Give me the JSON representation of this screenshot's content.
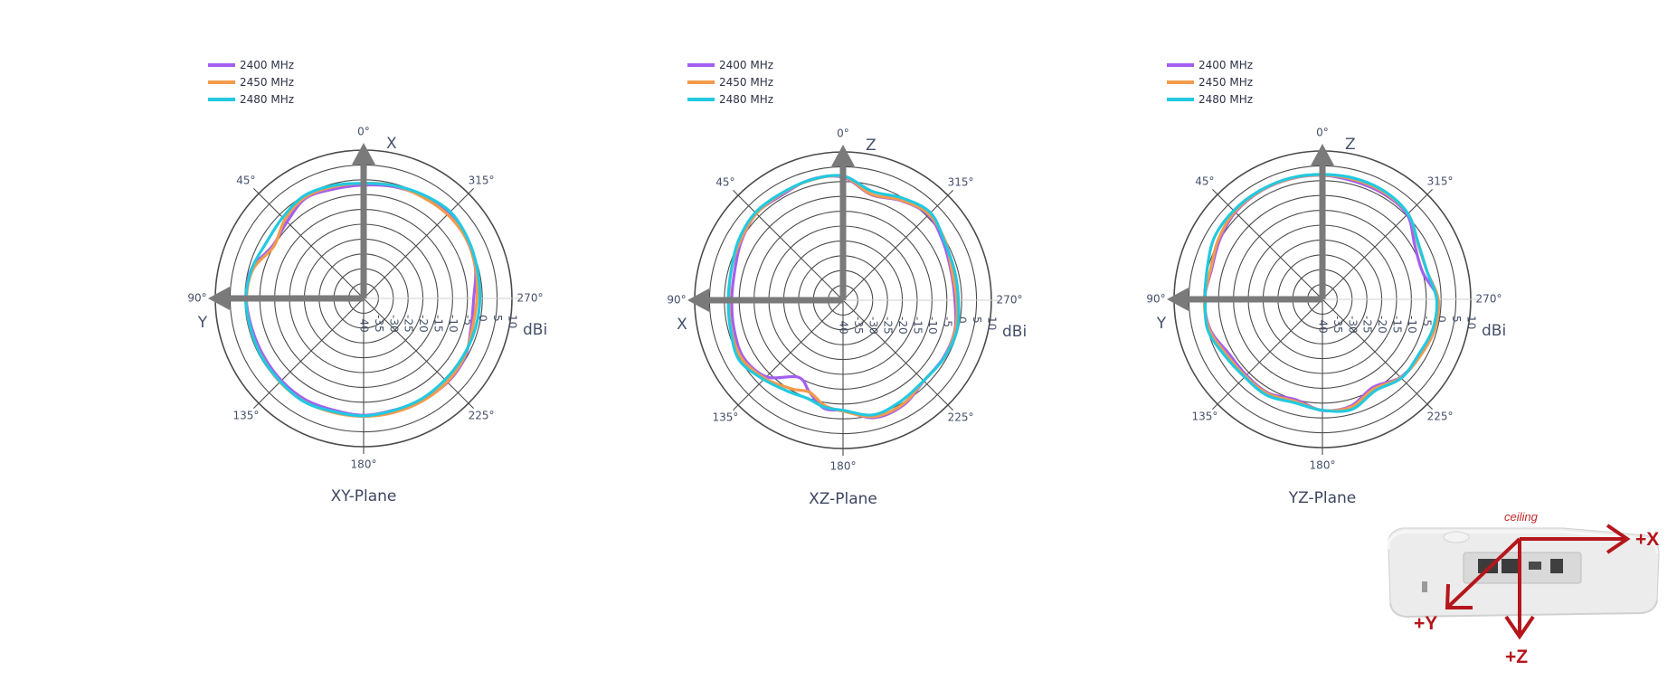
{
  "chart_data": [
    {
      "type": "polar",
      "title": "XY-Plane",
      "unit": "dBi",
      "radial_range": [
        -40,
        10
      ],
      "radial_ticks": [
        "10",
        "5",
        "0",
        "-5",
        "-10",
        "-15",
        "-20",
        "-25",
        "-30",
        "-35",
        "-40"
      ],
      "angle_ticks": [
        "0°",
        "45°",
        "90°",
        "135°",
        "180°",
        "225°",
        "270°",
        "315°"
      ],
      "angle_direction": "counterclockwise, 0° at top",
      "axis_arrows": [
        "X",
        "Y"
      ],
      "legend_position": "top-left",
      "series": [
        {
          "name": "2400 MHz",
          "color": "#a35ff0",
          "angles": [
            0,
            15,
            30,
            45,
            60,
            75,
            90,
            105,
            120,
            135,
            150,
            165,
            180,
            195,
            210,
            225,
            240,
            255,
            270,
            285,
            300,
            315,
            330,
            345
          ],
          "values": [
            -1.8,
            -1.8,
            -1.0,
            -3.5,
            -4.6,
            -1.0,
            -0.5,
            -1.0,
            -1.1,
            -0.8,
            -0.6,
            -1.0,
            -0.6,
            -1.0,
            -0.4,
            0.0,
            -0.5,
            -2.5,
            -2.9,
            -1.0,
            0.0,
            0.4,
            -0.2,
            -1.0
          ]
        },
        {
          "name": "2450 MHz",
          "color": "#f39a4c",
          "angles": [
            0,
            15,
            30,
            45,
            60,
            75,
            90,
            105,
            120,
            135,
            150,
            165,
            180,
            195,
            210,
            225,
            240,
            255,
            270,
            285,
            300,
            315,
            330,
            345
          ],
          "values": [
            -1.2,
            -1.0,
            -0.6,
            -2.5,
            -5.0,
            -1.5,
            -0.5,
            -0.5,
            -0.5,
            -0.1,
            0.1,
            -0.2,
            -0.2,
            -0.2,
            -0.1,
            -0.2,
            -0.8,
            -2.0,
            -1.8,
            -0.9,
            0.0,
            0.0,
            -0.5,
            -0.6
          ]
        },
        {
          "name": "2480 MHz",
          "color": "#22c9e0",
          "angles": [
            0,
            15,
            30,
            45,
            60,
            75,
            90,
            105,
            120,
            135,
            150,
            165,
            180,
            195,
            210,
            225,
            240,
            255,
            270,
            285,
            300,
            315,
            330,
            345
          ],
          "values": [
            -1.2,
            -0.6,
            0.0,
            -1.4,
            -2.2,
            -1.0,
            -0.3,
            -0.6,
            -0.4,
            -0.3,
            0.2,
            -0.5,
            -0.4,
            -0.9,
            -0.9,
            -1.2,
            -1.2,
            -1.0,
            -0.8,
            -0.4,
            0.5,
            1.3,
            0.3,
            -0.6
          ]
        }
      ]
    },
    {
      "type": "polar",
      "title": "XZ-Plane",
      "unit": "dBi",
      "radial_range": [
        -40,
        10
      ],
      "radial_ticks": [
        "10",
        "5",
        "0",
        "-5",
        "-10",
        "-15",
        "-20",
        "-25",
        "-30",
        "-35",
        "-40"
      ],
      "angle_ticks": [
        "0°",
        "45°",
        "90°",
        "135°",
        "180°",
        "225°",
        "270°",
        "315°"
      ],
      "angle_direction": "counterclockwise, 0° at top",
      "axis_arrows": [
        "Z",
        "X"
      ],
      "legend_position": "top-left",
      "series": [
        {
          "name": "2400 MHz",
          "color": "#a35ff0",
          "angles": [
            0,
            15,
            30,
            45,
            60,
            75,
            90,
            105,
            120,
            135,
            150,
            160,
            170,
            180,
            195,
            210,
            225,
            240,
            255,
            270,
            285,
            300,
            315,
            330,
            345
          ],
          "values": [
            1.5,
            2.1,
            1.0,
            1.3,
            -0.4,
            -2.2,
            -2.5,
            -2.0,
            -1.3,
            -3.5,
            -10.0,
            -7.0,
            -3.0,
            -2.8,
            1.0,
            0.8,
            -1.5,
            -1.0,
            -1.0,
            -2.3,
            -2.3,
            -1.0,
            0.7,
            -1.2,
            -3.2
          ]
        },
        {
          "name": "2450 MHz",
          "color": "#f39a4c",
          "angles": [
            0,
            15,
            30,
            45,
            60,
            75,
            90,
            105,
            120,
            135,
            150,
            160,
            170,
            180,
            195,
            210,
            225,
            240,
            255,
            270,
            285,
            300,
            315,
            330,
            345
          ],
          "values": [
            1.7,
            1.9,
            1.4,
            1.3,
            0.0,
            -1.0,
            -1.6,
            -1.0,
            -0.6,
            -2.7,
            -5.5,
            -7.0,
            -4.0,
            -2.6,
            0.6,
            0.4,
            -1.6,
            -0.8,
            -0.8,
            -1.7,
            -2.0,
            -0.2,
            1.0,
            -1.0,
            -3.0
          ]
        },
        {
          "name": "2480 MHz",
          "color": "#22c9e0",
          "angles": [
            0,
            15,
            30,
            45,
            60,
            75,
            90,
            105,
            120,
            135,
            150,
            160,
            170,
            180,
            195,
            210,
            225,
            240,
            255,
            270,
            285,
            300,
            315,
            330,
            345
          ],
          "values": [
            1.9,
            2.0,
            1.6,
            1.8,
            0.6,
            -1.0,
            -1.3,
            -0.8,
            0.4,
            -2.2,
            -4.2,
            -4.8,
            -3.4,
            -2.9,
            0.0,
            -0.8,
            -1.6,
            -0.8,
            -0.3,
            -1.1,
            -1.1,
            -0.5,
            1.7,
            -0.2,
            -2.0
          ]
        }
      ]
    },
    {
      "type": "polar",
      "title": "YZ-Plane",
      "unit": "dBi",
      "radial_range": [
        -40,
        10
      ],
      "radial_ticks": [
        "10",
        "5",
        "0",
        "-5",
        "-10",
        "-15",
        "-20",
        "-25",
        "-30",
        "-35",
        "-40"
      ],
      "angle_ticks": [
        "0°",
        "45°",
        "90°",
        "135°",
        "180°",
        "225°",
        "270°",
        "315°"
      ],
      "angle_direction": "counterclockwise, 0° at top",
      "axis_arrows": [
        "Z",
        "Y"
      ],
      "legend_position": "top-left",
      "series": [
        {
          "name": "2400 MHz",
          "color": "#a35ff0",
          "angles": [
            0,
            15,
            30,
            45,
            60,
            75,
            90,
            105,
            120,
            135,
            150,
            165,
            180,
            195,
            210,
            225,
            240,
            255,
            270,
            285,
            300,
            315,
            330,
            345
          ],
          "values": [
            1.8,
            2.0,
            2.0,
            1.5,
            0.0,
            -1.3,
            -0.3,
            -0.8,
            -3.5,
            -3.8,
            -3.5,
            -5.0,
            -2.5,
            -2.8,
            -5.8,
            -2.8,
            -2.1,
            -1.0,
            -1.0,
            -5.0,
            -4.0,
            0.4,
            1.1,
            1.2
          ]
        },
        {
          "name": "2450 MHz",
          "color": "#f39a4c",
          "angles": [
            0,
            15,
            30,
            45,
            60,
            75,
            90,
            105,
            120,
            135,
            150,
            165,
            180,
            195,
            210,
            225,
            240,
            255,
            270,
            285,
            300,
            315,
            330,
            345
          ],
          "values": [
            1.9,
            2.1,
            2.1,
            1.8,
            0.5,
            -1.0,
            -0.2,
            -0.5,
            -2.7,
            -3.3,
            -3.2,
            -4.4,
            -2.6,
            -2.4,
            -5.2,
            -2.6,
            -1.9,
            -0.8,
            -1.0,
            -3.5,
            -2.8,
            0.8,
            1.6,
            1.8
          ]
        },
        {
          "name": "2480 MHz",
          "color": "#22c9e0",
          "angles": [
            0,
            15,
            30,
            45,
            60,
            75,
            90,
            105,
            120,
            135,
            150,
            165,
            180,
            195,
            210,
            225,
            240,
            255,
            270,
            285,
            300,
            315,
            330,
            345
          ],
          "values": [
            2.1,
            2.3,
            2.3,
            2.3,
            2.0,
            0.2,
            -0.5,
            0.0,
            -2.0,
            -2.9,
            -2.6,
            -3.9,
            -2.6,
            -1.6,
            -4.4,
            -2.4,
            -2.6,
            -1.5,
            -1.5,
            -3.5,
            -2.6,
            0.8,
            2.0,
            2.2
          ]
        }
      ]
    }
  ],
  "device_figure": {
    "ceiling_label": "ceiling",
    "axis_x_label": "+X",
    "axis_y_label": "+Y",
    "axis_z_label": "+Z",
    "arrow_color": "#b5161b"
  },
  "colors": {
    "grid": "#4b4b4b",
    "axis_arrow": "#7a7a7a",
    "text": "#44506a"
  }
}
